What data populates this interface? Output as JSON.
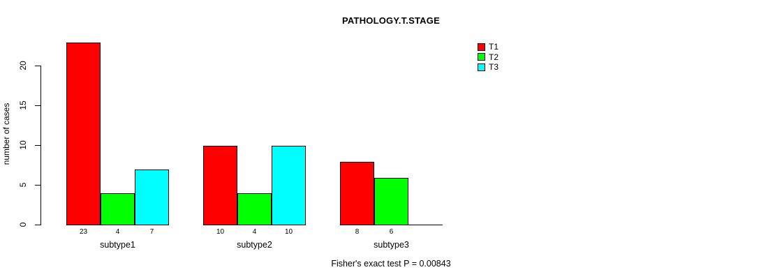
{
  "chart_data": {
    "type": "bar",
    "grouped": true,
    "title": "PATHOLOGY.T.STAGE",
    "xlabel": "",
    "ylabel": "number of cases",
    "categories": [
      "subtype1",
      "subtype2",
      "subtype3"
    ],
    "series": [
      {
        "name": "T1",
        "color": "#ff0000",
        "values": [
          23,
          10,
          8
        ]
      },
      {
        "name": "T2",
        "color": "#00ff00",
        "values": [
          4,
          4,
          6
        ]
      },
      {
        "name": "T3",
        "color": "#00ffff",
        "values": [
          7,
          10,
          0
        ]
      }
    ],
    "bar_value_labels": [
      [
        "23",
        "4",
        "7"
      ],
      [
        "10",
        "4",
        "10"
      ],
      [
        "8",
        "6",
        ""
      ]
    ],
    "yticks": [
      0,
      5,
      10,
      15,
      20
    ],
    "ylim": [
      0,
      23
    ],
    "grid": false,
    "legend_position": "top-right",
    "annotation": "Fisher's exact test P = 0.00843"
  }
}
